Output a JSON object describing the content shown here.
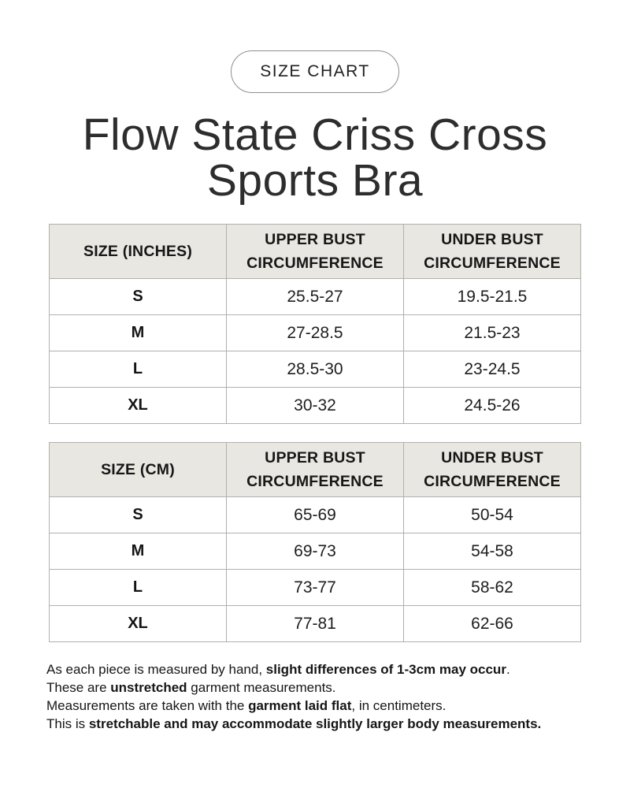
{
  "badge": {
    "label": "SIZE CHART"
  },
  "title": {
    "line1": "Flow State Criss Cross",
    "line2": "Sports Bra"
  },
  "colors": {
    "page_background": "#ffffff",
    "table_header_background": "#e9e7e2",
    "table_border": "#b2b0ad",
    "badge_border": "#8f8f8f",
    "text": "#1e1e1e"
  },
  "tables": [
    {
      "name": "inches",
      "headers": [
        "SIZE (INCHES)",
        "UPPER BUST CIRCUMFERENCE",
        "UNDER BUST CIRCUMFERENCE"
      ],
      "rows": [
        [
          "S",
          "25.5-27",
          "19.5-21.5"
        ],
        [
          "M",
          "27-28.5",
          "21.5-23"
        ],
        [
          "L",
          "28.5-30",
          "23-24.5"
        ],
        [
          "XL",
          "30-32",
          "24.5-26"
        ]
      ]
    },
    {
      "name": "cm",
      "headers": [
        "SIZE (CM)",
        "UPPER BUST CIRCUMFERENCE",
        "UNDER BUST CIRCUMFERENCE"
      ],
      "rows": [
        [
          "S",
          "65-69",
          "50-54"
        ],
        [
          "M",
          "69-73",
          "54-58"
        ],
        [
          "L",
          "73-77",
          "58-62"
        ],
        [
          "XL",
          "77-81",
          "62-66"
        ]
      ]
    }
  ],
  "notes": [
    {
      "segments": [
        {
          "t": "As each piece is measured by hand, ",
          "b": false
        },
        {
          "t": "slight differences of 1-3cm may occur",
          "b": true
        },
        {
          "t": ".",
          "b": false
        }
      ]
    },
    {
      "segments": [
        {
          "t": "These are ",
          "b": false
        },
        {
          "t": "unstretched",
          "b": true
        },
        {
          "t": " garment measurements.",
          "b": false
        }
      ]
    },
    {
      "segments": [
        {
          "t": "Measurements are taken with the ",
          "b": false
        },
        {
          "t": "garment laid flat",
          "b": true
        },
        {
          "t": ", in centimeters.",
          "b": false
        }
      ]
    },
    {
      "segments": [
        {
          "t": "This is ",
          "b": false
        },
        {
          "t": "stretchable and may accommodate slightly larger body measurements.",
          "b": true
        }
      ]
    }
  ]
}
